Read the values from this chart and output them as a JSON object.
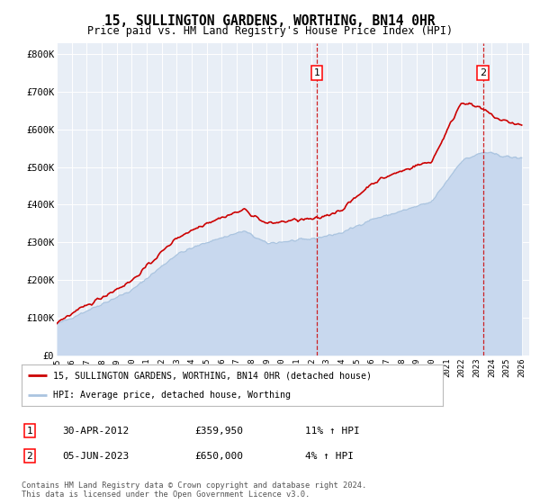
{
  "title": "15, SULLINGTON GARDENS, WORTHING, BN14 0HR",
  "subtitle": "Price paid vs. HM Land Registry's House Price Index (HPI)",
  "ylabel_ticks": [
    "£0",
    "£100K",
    "£200K",
    "£300K",
    "£400K",
    "£500K",
    "£600K",
    "£700K",
    "£800K"
  ],
  "ytick_values": [
    0,
    100000,
    200000,
    300000,
    400000,
    500000,
    600000,
    700000,
    800000
  ],
  "ylim": [
    0,
    830000
  ],
  "xlim_start": 1995.0,
  "xlim_end": 2026.5,
  "bg_color": "#e8eef6",
  "hpi_color": "#aac4e0",
  "hpi_fill_color": "#c8d8ee",
  "price_color": "#cc0000",
  "marker1_x": 2012.33,
  "marker2_x": 2023.42,
  "sale1_date": "30-APR-2012",
  "sale1_price": "£359,950",
  "sale1_hpi": "11% ↑ HPI",
  "sale2_date": "05-JUN-2023",
  "sale2_price": "£650,000",
  "sale2_hpi": "4% ↑ HPI",
  "legend_label1": "15, SULLINGTON GARDENS, WORTHING, BN14 0HR (detached house)",
  "legend_label2": "HPI: Average price, detached house, Worthing",
  "footer": "Contains HM Land Registry data © Crown copyright and database right 2024.\nThis data is licensed under the Open Government Licence v3.0.",
  "xticks": [
    1995,
    1996,
    1997,
    1998,
    1999,
    2000,
    2001,
    2002,
    2003,
    2004,
    2005,
    2006,
    2007,
    2008,
    2009,
    2010,
    2011,
    2012,
    2013,
    2014,
    2015,
    2016,
    2017,
    2018,
    2019,
    2020,
    2021,
    2022,
    2023,
    2024,
    2025,
    2026
  ]
}
